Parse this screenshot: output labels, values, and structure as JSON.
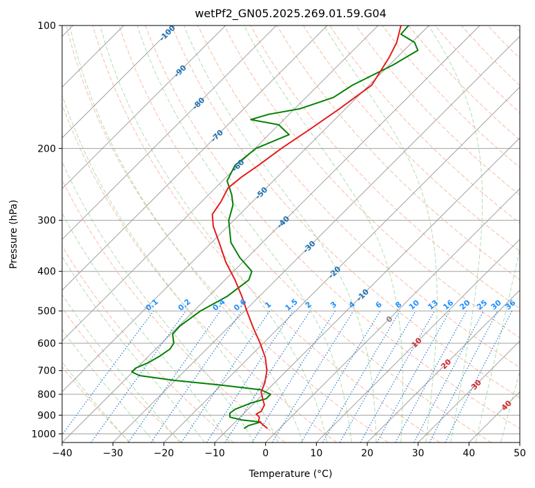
{
  "chart_data": {
    "type": "skew-t",
    "title": "wetPf2_GN05.2025.269.01.59.G04",
    "xlabel": "Temperature (°C)",
    "ylabel": "Pressure (hPa)",
    "xlim": [
      -40,
      50
    ],
    "ylim": [
      1050,
      100
    ],
    "y_scale": "log",
    "grid": true,
    "x_ticks": [
      -40,
      -30,
      -20,
      -10,
      0,
      10,
      20,
      30,
      40,
      50
    ],
    "x_tick_labels": [
      "−40",
      "−30",
      "−20",
      "−10",
      "0",
      "10",
      "20",
      "30",
      "40",
      "50"
    ],
    "y_ticks": [
      100,
      200,
      300,
      400,
      500,
      600,
      700,
      800,
      900,
      1000
    ],
    "y_tick_labels": [
      "100",
      "200",
      "300",
      "400",
      "500",
      "600",
      "700",
      "800",
      "900",
      "1000"
    ],
    "temperature_profile": {
      "color": "#e41a1c",
      "points": [
        {
          "p": 970,
          "t": -2.4
        },
        {
          "p": 930,
          "t": -5.6
        },
        {
          "p": 910,
          "t": -6.2
        },
        {
          "p": 895,
          "t": -7.4
        },
        {
          "p": 880,
          "t": -7.0
        },
        {
          "p": 850,
          "t": -7.6
        },
        {
          "p": 820,
          "t": -9.2
        },
        {
          "p": 790,
          "t": -10.8
        },
        {
          "p": 750,
          "t": -11.9
        },
        {
          "p": 700,
          "t": -13.9
        },
        {
          "p": 650,
          "t": -16.8
        },
        {
          "p": 600,
          "t": -20.6
        },
        {
          "p": 550,
          "t": -25.0
        },
        {
          "p": 500,
          "t": -29.6
        },
        {
          "p": 460,
          "t": -33.5
        },
        {
          "p": 420,
          "t": -38.0
        },
        {
          "p": 380,
          "t": -43.3
        },
        {
          "p": 340,
          "t": -48.5
        },
        {
          "p": 310,
          "t": -52.9
        },
        {
          "p": 290,
          "t": -55.4
        },
        {
          "p": 270,
          "t": -56.2
        },
        {
          "p": 250,
          "t": -57.5
        },
        {
          "p": 235,
          "t": -57.0
        },
        {
          "p": 220,
          "t": -56.0
        },
        {
          "p": 200,
          "t": -54.8
        },
        {
          "p": 180,
          "t": -53.0
        },
        {
          "p": 160,
          "t": -51.2
        },
        {
          "p": 140,
          "t": -49.5
        },
        {
          "p": 120,
          "t": -51.5
        },
        {
          "p": 110,
          "t": -53.0
        },
        {
          "p": 100,
          "t": -55.5
        }
      ]
    },
    "dewpoint_profile": {
      "color": "#008000",
      "points": [
        {
          "p": 970,
          "t": -7.0
        },
        {
          "p": 955,
          "t": -6.7
        },
        {
          "p": 935,
          "t": -5.0
        },
        {
          "p": 925,
          "t": -9.0
        },
        {
          "p": 910,
          "t": -12.0
        },
        {
          "p": 890,
          "t": -12.8
        },
        {
          "p": 870,
          "t": -12.5
        },
        {
          "p": 840,
          "t": -10.6
        },
        {
          "p": 820,
          "t": -8.5
        },
        {
          "p": 800,
          "t": -8.5
        },
        {
          "p": 780,
          "t": -11.3
        },
        {
          "p": 760,
          "t": -20.0
        },
        {
          "p": 740,
          "t": -30.0
        },
        {
          "p": 720,
          "t": -38.0
        },
        {
          "p": 705,
          "t": -40.2
        },
        {
          "p": 690,
          "t": -40.2
        },
        {
          "p": 670,
          "t": -38.8
        },
        {
          "p": 645,
          "t": -37.8
        },
        {
          "p": 620,
          "t": -37.2
        },
        {
          "p": 600,
          "t": -37.6
        },
        {
          "p": 570,
          "t": -39.6
        },
        {
          "p": 545,
          "t": -39.8
        },
        {
          "p": 500,
          "t": -38.7
        },
        {
          "p": 460,
          "t": -36.3
        },
        {
          "p": 420,
          "t": -35.3
        },
        {
          "p": 400,
          "t": -36.4
        },
        {
          "p": 370,
          "t": -41.5
        },
        {
          "p": 340,
          "t": -46.2
        },
        {
          "p": 300,
          "t": -51.0
        },
        {
          "p": 275,
          "t": -53.2
        },
        {
          "p": 260,
          "t": -55.4
        },
        {
          "p": 240,
          "t": -59.1
        },
        {
          "p": 220,
          "t": -60.6
        },
        {
          "p": 200,
          "t": -59.8
        },
        {
          "p": 185,
          "t": -56.0
        },
        {
          "p": 175,
          "t": -60.0
        },
        {
          "p": 170,
          "t": -66.5
        },
        {
          "p": 165,
          "t": -64.0
        },
        {
          "p": 160,
          "t": -59.0
        },
        {
          "p": 150,
          "t": -54.6
        },
        {
          "p": 140,
          "t": -53.3
        },
        {
          "p": 125,
          "t": -49.3
        },
        {
          "p": 115,
          "t": -47.3
        },
        {
          "p": 110,
          "t": -49.5
        },
        {
          "p": 105,
          "t": -53.8
        },
        {
          "p": 100,
          "t": -54.0
        }
      ]
    },
    "isotherm_labels": [
      {
        "t": -100,
        "text": "-100"
      },
      {
        "t": -90,
        "text": "-90"
      },
      {
        "t": -80,
        "text": "-80"
      },
      {
        "t": -70,
        "text": "-70"
      },
      {
        "t": -60,
        "text": "-60"
      },
      {
        "t": -50,
        "text": "-50"
      },
      {
        "t": -40,
        "text": "-40"
      },
      {
        "t": -30,
        "text": "-30"
      },
      {
        "t": -20,
        "text": "-20"
      },
      {
        "t": -10,
        "text": "-10"
      },
      {
        "t": 0,
        "text": "0"
      },
      {
        "t": 10,
        "text": "10"
      },
      {
        "t": 20,
        "text": "20"
      },
      {
        "t": 30,
        "text": "30"
      },
      {
        "t": 40,
        "text": "40"
      }
    ],
    "mixing_ratio_lines": [
      {
        "w": 0.1,
        "text": "0.1"
      },
      {
        "w": 0.2,
        "text": "0.2"
      },
      {
        "w": 0.4,
        "text": "0.4"
      },
      {
        "w": 0.6,
        "text": "0.6"
      },
      {
        "w": 1,
        "text": "1"
      },
      {
        "w": 1.5,
        "text": "1.5"
      },
      {
        "w": 2,
        "text": "2"
      },
      {
        "w": 3,
        "text": "3"
      },
      {
        "w": 4,
        "text": "4"
      },
      {
        "w": 6,
        "text": "6"
      },
      {
        "w": 8,
        "text": "8"
      },
      {
        "w": 10,
        "text": "10"
      },
      {
        "w": 13,
        "text": "13"
      },
      {
        "w": 16,
        "text": "16"
      },
      {
        "w": 20,
        "text": "20"
      },
      {
        "w": 25,
        "text": "25"
      },
      {
        "w": 30,
        "text": "30"
      },
      {
        "w": 36,
        "text": "36"
      }
    ],
    "colors": {
      "isotherm": "#a0a0a0",
      "isobar": "#a0a0a0",
      "dry_adiabat": "#f4a582",
      "moist_adiabat": "#8fcf8f",
      "mixing_ratio": "#1f78d1",
      "label_cold": "#1f6fb0",
      "label_zero": "#808080",
      "label_warm": "#d62728",
      "label_mixing": "#1e90ff"
    }
  }
}
